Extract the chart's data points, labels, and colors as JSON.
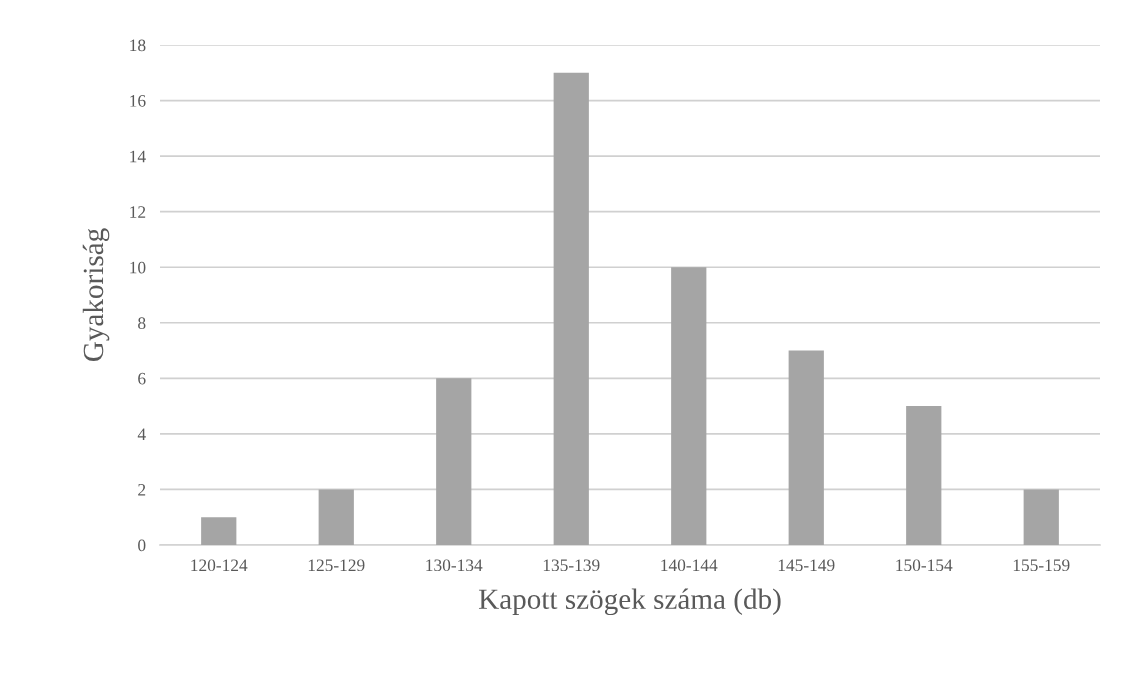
{
  "chart_data": {
    "type": "bar",
    "xlabel": "Kapott szögek száma (db)",
    "ylabel": "Gyakoriság",
    "categories": [
      "120-124",
      "125-129",
      "130-134",
      "135-139",
      "140-144",
      "145-149",
      "150-154",
      "155-159"
    ],
    "values": [
      1,
      2,
      6,
      17,
      10,
      7,
      5,
      2
    ],
    "color": "#a5a5a5",
    "ylim": [
      0,
      18
    ],
    "yticks": [
      0,
      2,
      4,
      6,
      8,
      10,
      12,
      14,
      16,
      18
    ],
    "grid": "y"
  }
}
